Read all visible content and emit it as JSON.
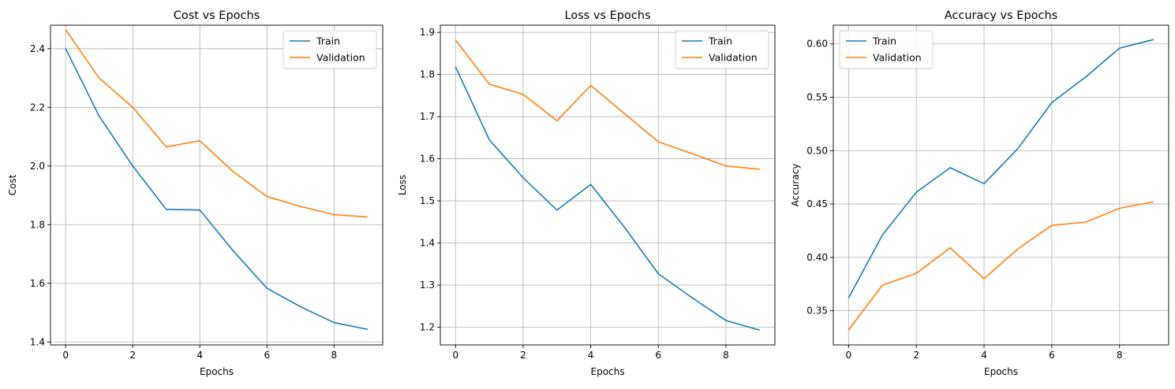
{
  "colors": {
    "train": "#1f77b4",
    "validation": "#ff7f0e",
    "grid": "#b0b0b0"
  },
  "chart_data": [
    {
      "type": "line",
      "title": "Cost vs Epochs",
      "xlabel": "Epochs",
      "ylabel": "Cost",
      "x": [
        0,
        1,
        2,
        3,
        4,
        5,
        6,
        7,
        8,
        9
      ],
      "xlim": [
        -0.45,
        9.45
      ],
      "ylim": [
        1.39,
        2.48
      ],
      "xticks": [
        0,
        2,
        4,
        6,
        8
      ],
      "xtick_labels": [
        "0",
        "2",
        "4",
        "6",
        "8"
      ],
      "yticks": [
        1.4,
        1.6,
        1.8,
        2.0,
        2.2,
        2.4
      ],
      "ytick_labels": [
        "1.4",
        "1.6",
        "1.8",
        "2.0",
        "2.2",
        "2.4"
      ],
      "grid": true,
      "legend_position": "upper right",
      "series": [
        {
          "name": "Train",
          "color": "#1f77b4",
          "values": [
            2.4,
            2.17,
            2.0,
            1.852,
            1.85,
            1.71,
            1.583,
            1.52,
            1.466,
            1.443
          ]
        },
        {
          "name": "Validation",
          "color": "#ff7f0e",
          "values": [
            2.465,
            2.3,
            2.2,
            2.065,
            2.086,
            1.98,
            1.896,
            1.862,
            1.834,
            1.826
          ]
        }
      ]
    },
    {
      "type": "line",
      "title": "Loss vs Epochs",
      "xlabel": "Epochs",
      "ylabel": "Loss",
      "x": [
        0,
        1,
        2,
        3,
        4,
        5,
        6,
        7,
        8,
        9
      ],
      "xlim": [
        -0.45,
        9.45
      ],
      "ylim": [
        1.158,
        1.917
      ],
      "xticks": [
        0,
        2,
        4,
        6,
        8
      ],
      "xtick_labels": [
        "0",
        "2",
        "4",
        "6",
        "8"
      ],
      "yticks": [
        1.2,
        1.3,
        1.4,
        1.5,
        1.6,
        1.7,
        1.8,
        1.9
      ],
      "ytick_labels": [
        "1.2",
        "1.3",
        "1.4",
        "1.5",
        "1.6",
        "1.7",
        "1.8",
        "1.9"
      ],
      "grid": true,
      "legend_position": "upper right",
      "series": [
        {
          "name": "Train",
          "color": "#1f77b4",
          "values": [
            1.818,
            1.645,
            1.555,
            1.478,
            1.539,
            1.437,
            1.327,
            1.27,
            1.216,
            1.193
          ]
        },
        {
          "name": "Validation",
          "color": "#ff7f0e",
          "values": [
            1.882,
            1.777,
            1.753,
            1.69,
            1.774,
            1.707,
            1.64,
            1.612,
            1.583,
            1.575
          ]
        }
      ]
    },
    {
      "type": "line",
      "title": "Accuracy vs Epochs",
      "xlabel": "Epochs",
      "ylabel": "Accuracy",
      "x": [
        0,
        1,
        2,
        3,
        4,
        5,
        6,
        7,
        8,
        9
      ],
      "xlim": [
        -0.45,
        9.45
      ],
      "ylim": [
        0.318,
        0.6175
      ],
      "xticks": [
        0,
        2,
        4,
        6,
        8
      ],
      "xtick_labels": [
        "0",
        "2",
        "4",
        "6",
        "8"
      ],
      "yticks": [
        0.35,
        0.4,
        0.45,
        0.5,
        0.55,
        0.6
      ],
      "ytick_labels": [
        "0.35",
        "0.40",
        "0.45",
        "0.50",
        "0.55",
        "0.60"
      ],
      "grid": true,
      "legend_position": "upper left",
      "series": [
        {
          "name": "Train",
          "color": "#1f77b4",
          "values": [
            0.362,
            0.421,
            0.461,
            0.484,
            0.469,
            0.502,
            0.545,
            0.569,
            0.596,
            0.604
          ]
        },
        {
          "name": "Validation",
          "color": "#ff7f0e",
          "values": [
            0.332,
            0.374,
            0.385,
            0.409,
            0.38,
            0.408,
            0.43,
            0.433,
            0.446,
            0.452
          ]
        }
      ]
    }
  ]
}
